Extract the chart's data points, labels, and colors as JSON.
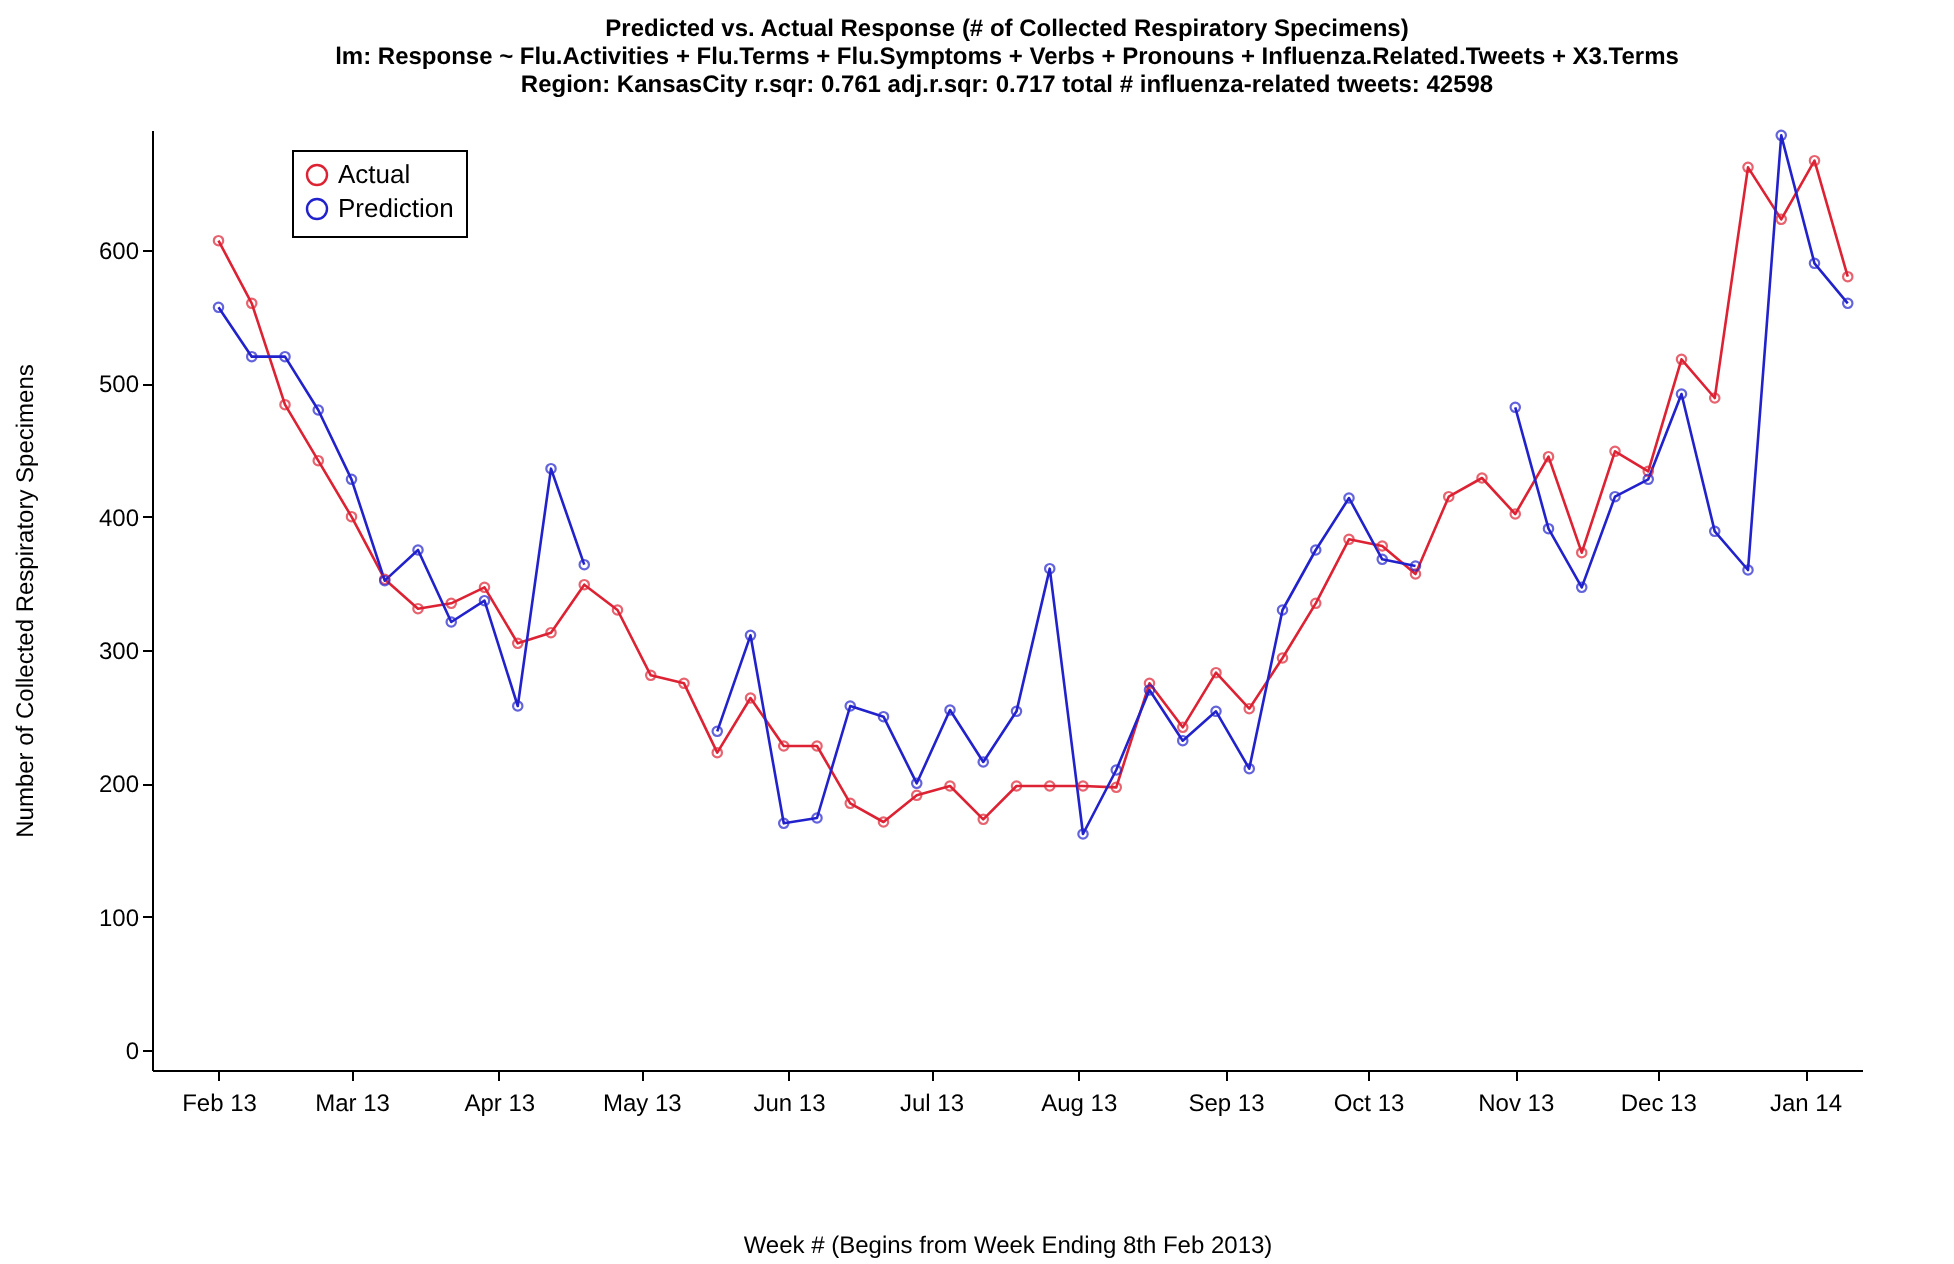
{
  "chart_data": {
    "type": "line",
    "title": "Predicted vs. Actual Response (# of Collected Respiratory Specimens)",
    "subtitle": "lm: Response ~ Flu.Activities + Flu.Terms + Flu.Symptoms + Verbs + Pronouns + Influenza.Related.Tweets + X3.Terms",
    "annotations": [
      "Region: KansasCity   r.sqr: 0.761   adj.r.sqr: 0.717   total # influenza-related tweets: 42598"
    ],
    "xlabel": "Week # (Begins from Week Ending 8th Feb 2013)",
    "ylabel": "Number of Collected Respiratory Specimens",
    "x": [
      "2013-02-08",
      "2013-02-15",
      "2013-02-22",
      "2013-03-01",
      "2013-03-08",
      "2013-03-15",
      "2013-03-22",
      "2013-03-29",
      "2013-04-05",
      "2013-04-12",
      "2013-04-19",
      "2013-04-26",
      "2013-05-03",
      "2013-05-10",
      "2013-05-17",
      "2013-05-24",
      "2013-05-31",
      "2013-06-07",
      "2013-06-14",
      "2013-06-21",
      "2013-06-28",
      "2013-07-05",
      "2013-07-12",
      "2013-07-19",
      "2013-07-26",
      "2013-08-02",
      "2013-08-09",
      "2013-08-16",
      "2013-08-23",
      "2013-08-30",
      "2013-09-06",
      "2013-09-13",
      "2013-09-20",
      "2013-09-27",
      "2013-10-04",
      "2013-10-11",
      "2013-10-18",
      "2013-10-25",
      "2013-11-01",
      "2013-11-08",
      "2013-11-15",
      "2013-11-22",
      "2013-11-29",
      "2013-12-06",
      "2013-12-13",
      "2013-12-20",
      "2013-12-27",
      "2014-01-03",
      "2014-01-10",
      "2014-01-17"
    ],
    "series": [
      {
        "name": "Actual",
        "color": "#dd2233",
        "values": [
          607,
          560,
          484,
          442,
          400,
          353,
          331,
          335,
          347,
          305,
          313,
          349,
          330,
          281,
          275,
          223,
          264,
          228,
          228,
          185,
          171,
          191,
          198,
          173,
          198,
          198,
          198,
          197,
          275,
          242,
          283,
          256,
          294,
          335,
          383,
          378,
          357,
          415,
          429,
          402,
          445,
          373,
          449,
          434,
          518,
          489,
          662,
          623,
          667,
          580
        ]
      },
      {
        "name": "Prediction",
        "color": "#2222cc",
        "values": [
          557,
          520,
          520,
          480,
          428,
          352,
          375,
          321,
          337,
          258,
          436,
          364,
          null,
          null,
          null,
          239,
          311,
          170,
          174,
          258,
          250,
          200,
          255,
          216,
          254,
          361,
          162,
          210,
          270,
          232,
          254,
          211,
          330,
          375,
          414,
          368,
          363,
          null,
          null,
          482,
          391,
          347,
          415,
          428,
          492,
          389,
          360,
          686,
          590,
          560
        ]
      }
    ],
    "xlim": [
      "2013-01-25",
      "2014-01-20"
    ],
    "xticks": [
      {
        "value": "2013-02-08",
        "label": "Feb 13"
      },
      {
        "value": "2013-03-08",
        "label": "Mar 13"
      },
      {
        "value": "2013-04-08",
        "label": "Apr 13"
      },
      {
        "value": "2013-05-08",
        "label": "May 13"
      },
      {
        "value": "2013-06-08",
        "label": "Jun 13"
      },
      {
        "value": "2013-07-08",
        "label": "Jul 13"
      },
      {
        "value": "2013-08-08",
        "label": "Aug 13"
      },
      {
        "value": "2013-09-08",
        "label": "Sep 13"
      },
      {
        "value": "2013-10-08",
        "label": "Oct 13"
      },
      {
        "value": "2013-11-08",
        "label": "Nov 13"
      },
      {
        "value": "2013-12-08",
        "label": "Dec 13"
      },
      {
        "value": "2014-01-08",
        "label": "Jan 14"
      }
    ],
    "ylim": [
      -15,
      690
    ],
    "yticks": [
      0,
      100,
      200,
      300,
      400,
      500,
      600
    ],
    "legend": "top left",
    "marker": "circle",
    "line_style": "solid",
    "grid": false
  }
}
